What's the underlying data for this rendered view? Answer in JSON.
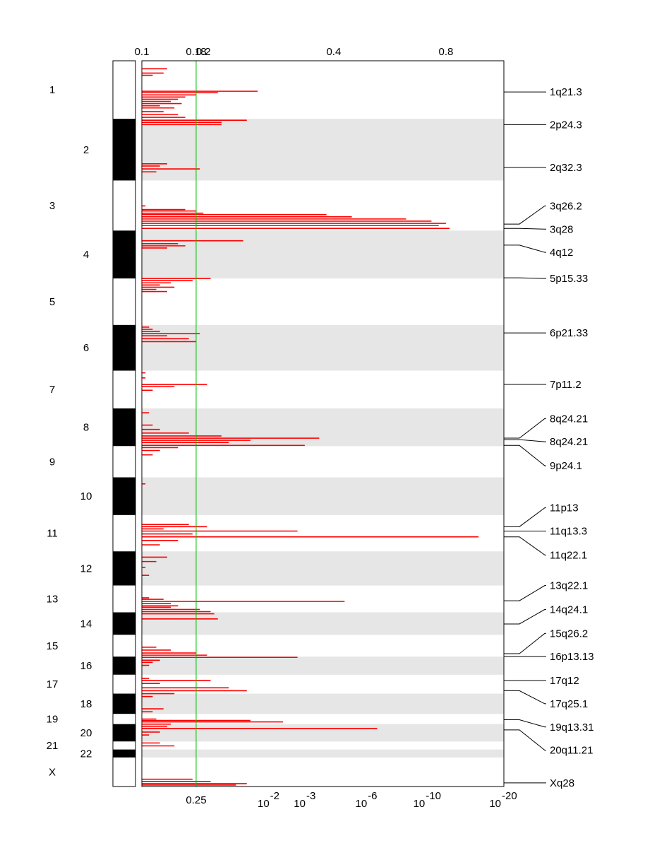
{
  "chart_data": {
    "type": "genome-wide-association-plot",
    "colors": {
      "signal": "#ff0000",
      "threshold_line": "#00c000",
      "band_shade": "#e6e6e6",
      "ideogram_dark": "#000000",
      "ideogram_light": "#ffffff"
    },
    "top_axis": {
      "ticks": [
        {
          "label": "0.1",
          "value": 0.0
        },
        {
          "label": "0.18",
          "value": 0.15
        },
        {
          "label": "0.2",
          "value": 0.17
        },
        {
          "label": "0.4",
          "value": 0.53
        },
        {
          "label": "0.8",
          "value": 0.84
        }
      ]
    },
    "bottom_axis": {
      "threshold": {
        "label": "0.25",
        "value": 0.15
      },
      "ticks": [
        {
          "base": "10",
          "exp": "-2",
          "value": 0.36
        },
        {
          "base": "10",
          "exp": "-3",
          "value": 0.46
        },
        {
          "base": "10",
          "exp": "-6",
          "value": 0.63
        },
        {
          "base": "10",
          "exp": "-10",
          "value": 0.79
        },
        {
          "base": "10",
          "exp": "-20",
          "value": 1.0
        }
      ]
    },
    "chromosomes": [
      {
        "label": "1",
        "start": 0.0,
        "end": 0.08,
        "side": "left"
      },
      {
        "label": "2",
        "start": 0.08,
        "end": 0.165,
        "side": "right"
      },
      {
        "label": "3",
        "start": 0.165,
        "end": 0.234,
        "side": "left"
      },
      {
        "label": "4",
        "start": 0.234,
        "end": 0.3,
        "side": "right"
      },
      {
        "label": "5",
        "start": 0.3,
        "end": 0.364,
        "side": "left"
      },
      {
        "label": "6",
        "start": 0.364,
        "end": 0.427,
        "side": "right"
      },
      {
        "label": "7",
        "start": 0.427,
        "end": 0.479,
        "side": "left"
      },
      {
        "label": "8",
        "start": 0.479,
        "end": 0.531,
        "side": "right"
      },
      {
        "label": "9",
        "start": 0.531,
        "end": 0.574,
        "side": "left"
      },
      {
        "label": "10",
        "start": 0.574,
        "end": 0.626,
        "side": "right"
      },
      {
        "label": "11",
        "start": 0.626,
        "end": 0.676,
        "side": "left"
      },
      {
        "label": "12",
        "start": 0.676,
        "end": 0.723,
        "side": "right"
      },
      {
        "label": "13",
        "start": 0.723,
        "end": 0.76,
        "side": "left"
      },
      {
        "label": "14",
        "start": 0.76,
        "end": 0.791,
        "side": "right"
      },
      {
        "label": "15",
        "start": 0.791,
        "end": 0.821,
        "side": "left"
      },
      {
        "label": "16",
        "start": 0.821,
        "end": 0.846,
        "side": "right"
      },
      {
        "label": "17",
        "start": 0.846,
        "end": 0.872,
        "side": "left"
      },
      {
        "label": "18",
        "start": 0.872,
        "end": 0.9,
        "side": "right"
      },
      {
        "label": "19",
        "start": 0.9,
        "end": 0.914,
        "side": "left"
      },
      {
        "label": "20",
        "start": 0.914,
        "end": 0.938,
        "side": "right"
      },
      {
        "label": "21",
        "start": 0.938,
        "end": 0.949,
        "side": "left"
      },
      {
        "label": "22",
        "start": 0.949,
        "end": 0.96,
        "side": "right"
      },
      {
        "label": "X",
        "start": 0.96,
        "end": 1.0,
        "side": "left"
      }
    ],
    "peak_annotations": [
      {
        "label": "1q21.3",
        "y": 0.043,
        "label_y": 0.043
      },
      {
        "label": "2p24.3",
        "y": 0.088,
        "label_y": 0.088
      },
      {
        "label": "2q32.3",
        "y": 0.147,
        "label_y": 0.147
      },
      {
        "label": "3q26.2",
        "y": 0.225,
        "label_y": 0.2
      },
      {
        "label": "3q28",
        "y": 0.231,
        "label_y": 0.232
      },
      {
        "label": "4q12",
        "y": 0.254,
        "label_y": 0.264
      },
      {
        "label": "5p15.33",
        "y": 0.299,
        "label_y": 0.3
      },
      {
        "label": "6p21.33",
        "y": 0.375,
        "label_y": 0.375
      },
      {
        "label": "7p11.2",
        "y": 0.446,
        "label_y": 0.446
      },
      {
        "label": "8q24.21",
        "y": 0.52,
        "label_y": 0.493
      },
      {
        "label": "8q24.21",
        "y": 0.522,
        "label_y": 0.525
      },
      {
        "label": "9p24.1",
        "y": 0.53,
        "label_y": 0.558
      },
      {
        "label": "11p13",
        "y": 0.642,
        "label_y": 0.616
      },
      {
        "label": "11q13.3",
        "y": 0.648,
        "label_y": 0.648
      },
      {
        "label": "11q22.1",
        "y": 0.656,
        "label_y": 0.681
      },
      {
        "label": "13q22.1",
        "y": 0.744,
        "label_y": 0.723
      },
      {
        "label": "14q24.1",
        "y": 0.776,
        "label_y": 0.756
      },
      {
        "label": "15q26.2",
        "y": 0.817,
        "label_y": 0.789
      },
      {
        "label": "16p13.13",
        "y": 0.821,
        "label_y": 0.821
      },
      {
        "label": "17q12",
        "y": 0.854,
        "label_y": 0.854
      },
      {
        "label": "17q25.1",
        "y": 0.868,
        "label_y": 0.886
      },
      {
        "label": "19q13.31",
        "y": 0.908,
        "label_y": 0.918
      },
      {
        "label": "20q11.21",
        "y": 0.922,
        "label_y": 0.95
      },
      {
        "label": "Xq28",
        "y": 0.995,
        "label_y": 0.995
      }
    ],
    "segments": [
      {
        "y": 0.011,
        "x": 0.07
      },
      {
        "y": 0.017,
        "x": 0.06
      },
      {
        "y": 0.02,
        "x": 0.03
      },
      {
        "y": 0.042,
        "x": 0.32
      },
      {
        "y": 0.044,
        "x": 0.21
      },
      {
        "y": 0.047,
        "x": 0.15
      },
      {
        "y": 0.05,
        "x": 0.12
      },
      {
        "y": 0.053,
        "x": 0.1
      },
      {
        "y": 0.056,
        "x": 0.08
      },
      {
        "y": 0.059,
        "x": 0.11
      },
      {
        "y": 0.062,
        "x": 0.05
      },
      {
        "y": 0.065,
        "x": 0.09
      },
      {
        "y": 0.07,
        "x": 0.06
      },
      {
        "y": 0.074,
        "x": 0.1
      },
      {
        "y": 0.078,
        "x": 0.12
      },
      {
        "y": 0.082,
        "x": 0.29
      },
      {
        "y": 0.085,
        "x": 0.22
      },
      {
        "y": 0.088,
        "x": 0.22
      },
      {
        "y": 0.142,
        "x": 0.07
      },
      {
        "y": 0.145,
        "x": 0.05
      },
      {
        "y": 0.149,
        "x": 0.16
      },
      {
        "y": 0.153,
        "x": 0.04
      },
      {
        "y": 0.2,
        "x": 0.01
      },
      {
        "y": 0.205,
        "x": 0.12
      },
      {
        "y": 0.207,
        "x": 0.15
      },
      {
        "y": 0.21,
        "x": 0.17
      },
      {
        "y": 0.212,
        "x": 0.51
      },
      {
        "y": 0.215,
        "x": 0.58
      },
      {
        "y": 0.218,
        "x": 0.73
      },
      {
        "y": 0.221,
        "x": 0.8
      },
      {
        "y": 0.224,
        "x": 0.84
      },
      {
        "y": 0.227,
        "x": 0.82
      },
      {
        "y": 0.231,
        "x": 0.85
      },
      {
        "y": 0.248,
        "x": 0.28
      },
      {
        "y": 0.252,
        "x": 0.1
      },
      {
        "y": 0.255,
        "x": 0.12
      },
      {
        "y": 0.258,
        "x": 0.07
      },
      {
        "y": 0.3,
        "x": 0.19
      },
      {
        "y": 0.303,
        "x": 0.14
      },
      {
        "y": 0.306,
        "x": 0.08
      },
      {
        "y": 0.309,
        "x": 0.05
      },
      {
        "y": 0.312,
        "x": 0.09
      },
      {
        "y": 0.315,
        "x": 0.04
      },
      {
        "y": 0.318,
        "x": 0.07
      },
      {
        "y": 0.367,
        "x": 0.02
      },
      {
        "y": 0.37,
        "x": 0.03
      },
      {
        "y": 0.373,
        "x": 0.05
      },
      {
        "y": 0.376,
        "x": 0.16
      },
      {
        "y": 0.379,
        "x": 0.07
      },
      {
        "y": 0.383,
        "x": 0.13
      },
      {
        "y": 0.387,
        "x": 0.15
      },
      {
        "y": 0.43,
        "x": 0.01
      },
      {
        "y": 0.437,
        "x": 0.01
      },
      {
        "y": 0.446,
        "x": 0.18
      },
      {
        "y": 0.449,
        "x": 0.09
      },
      {
        "y": 0.454,
        "x": 0.03
      },
      {
        "y": 0.485,
        "x": 0.02
      },
      {
        "y": 0.502,
        "x": 0.03
      },
      {
        "y": 0.508,
        "x": 0.05
      },
      {
        "y": 0.513,
        "x": 0.13
      },
      {
        "y": 0.517,
        "x": 0.22
      },
      {
        "y": 0.52,
        "x": 0.49
      },
      {
        "y": 0.523,
        "x": 0.3
      },
      {
        "y": 0.526,
        "x": 0.24
      },
      {
        "y": 0.53,
        "x": 0.45
      },
      {
        "y": 0.533,
        "x": 0.1
      },
      {
        "y": 0.537,
        "x": 0.05
      },
      {
        "y": 0.543,
        "x": 0.03
      },
      {
        "y": 0.583,
        "x": 0.01
      },
      {
        "y": 0.639,
        "x": 0.13
      },
      {
        "y": 0.642,
        "x": 0.18
      },
      {
        "y": 0.645,
        "x": 0.06
      },
      {
        "y": 0.648,
        "x": 0.43
      },
      {
        "y": 0.652,
        "x": 0.14
      },
      {
        "y": 0.656,
        "x": 0.93
      },
      {
        "y": 0.661,
        "x": 0.1
      },
      {
        "y": 0.667,
        "x": 0.05
      },
      {
        "y": 0.684,
        "x": 0.07
      },
      {
        "y": 0.69,
        "x": 0.04
      },
      {
        "y": 0.698,
        "x": 0.01
      },
      {
        "y": 0.709,
        "x": 0.02
      },
      {
        "y": 0.74,
        "x": 0.02
      },
      {
        "y": 0.742,
        "x": 0.06
      },
      {
        "y": 0.745,
        "x": 0.56
      },
      {
        "y": 0.748,
        "x": 0.08
      },
      {
        "y": 0.751,
        "x": 0.1
      },
      {
        "y": 0.753,
        "x": 0.08
      },
      {
        "y": 0.756,
        "x": 0.16
      },
      {
        "y": 0.759,
        "x": 0.19
      },
      {
        "y": 0.762,
        "x": 0.2
      },
      {
        "y": 0.769,
        "x": 0.21
      },
      {
        "y": 0.808,
        "x": 0.04
      },
      {
        "y": 0.812,
        "x": 0.08
      },
      {
        "y": 0.816,
        "x": 0.15
      },
      {
        "y": 0.819,
        "x": 0.18
      },
      {
        "y": 0.822,
        "x": 0.43
      },
      {
        "y": 0.826,
        "x": 0.05
      },
      {
        "y": 0.829,
        "x": 0.03
      },
      {
        "y": 0.833,
        "x": 0.02
      },
      {
        "y": 0.851,
        "x": 0.02
      },
      {
        "y": 0.854,
        "x": 0.19
      },
      {
        "y": 0.858,
        "x": 0.05
      },
      {
        "y": 0.864,
        "x": 0.24
      },
      {
        "y": 0.868,
        "x": 0.29
      },
      {
        "y": 0.872,
        "x": 0.09
      },
      {
        "y": 0.876,
        "x": 0.03
      },
      {
        "y": 0.893,
        "x": 0.06
      },
      {
        "y": 0.897,
        "x": 0.03
      },
      {
        "y": 0.907,
        "x": 0.04
      },
      {
        "y": 0.909,
        "x": 0.3
      },
      {
        "y": 0.911,
        "x": 0.39
      },
      {
        "y": 0.914,
        "x": 0.08
      },
      {
        "y": 0.917,
        "x": 0.07
      },
      {
        "y": 0.92,
        "x": 0.65
      },
      {
        "y": 0.925,
        "x": 0.05
      },
      {
        "y": 0.929,
        "x": 0.02
      },
      {
        "y": 0.94,
        "x": 0.05
      },
      {
        "y": 0.944,
        "x": 0.09
      },
      {
        "y": 0.99,
        "x": 0.14
      },
      {
        "y": 0.993,
        "x": 0.19
      },
      {
        "y": 0.996,
        "x": 0.29
      },
      {
        "y": 0.998,
        "x": 0.26
      }
    ]
  }
}
